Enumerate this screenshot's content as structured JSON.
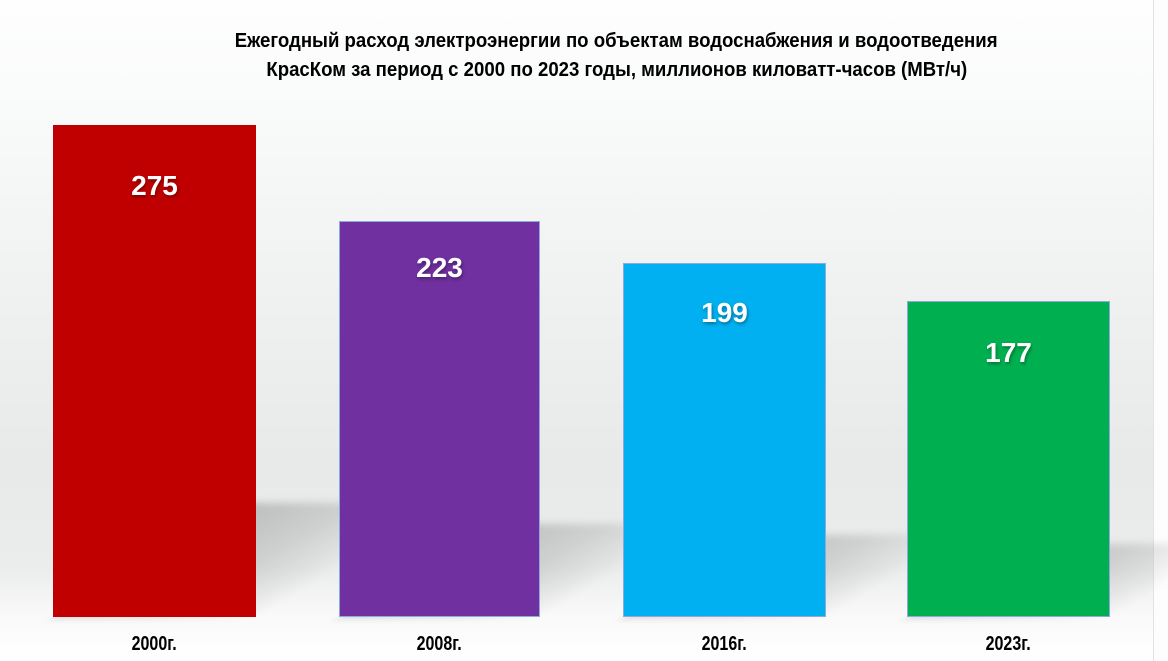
{
  "title": {
    "line1": "Ежегодный расход электроэнергии по объектам водоснабжения и водоотведения",
    "line2": "КрасКом за период с 2000 по 2023 годы, миллионов киловатт-часов (МВт/ч)"
  },
  "chart_data": {
    "type": "bar",
    "title": "Ежегодный расход электроэнергии по объектам водоснабжения и водоотведения КрасКом за период с 2000 по 2023 годы, миллионов киловатт-часов (МВт/ч)",
    "categories": [
      "2000г.",
      "2008г.",
      "2016г.",
      "2023г."
    ],
    "values": [
      275,
      223,
      199,
      177
    ],
    "colors": [
      "#C00000",
      "#7030A0",
      "#00B0F0",
      "#00B050"
    ],
    "border_colors": [
      "#C00000",
      "#8EA9DB",
      "#8EA9DB",
      "#8EA9DB"
    ],
    "value_label_color": "#FFFFFF",
    "xlabel": "",
    "ylabel": "",
    "ylim": [
      0,
      280
    ],
    "axes_visible": false,
    "grid": false,
    "legend": "none",
    "background": "#EDEDED",
    "shadow": "perspective-lower-right"
  }
}
